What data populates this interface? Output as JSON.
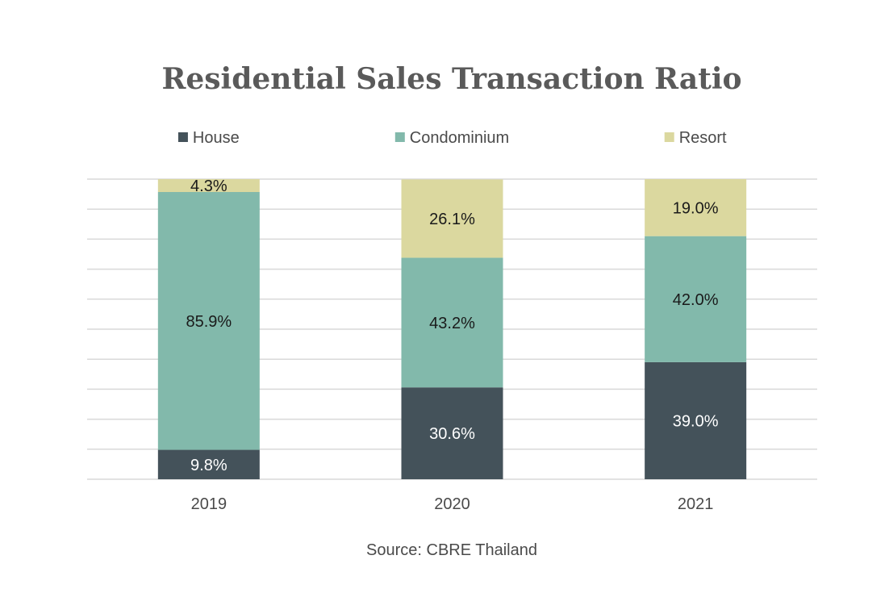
{
  "title": "Residential Sales Transaction Ratio",
  "source": "Source: CBRE Thailand",
  "chart_data": {
    "type": "bar",
    "stacked": true,
    "percent": true,
    "title": "Residential Sales Transaction Ratio",
    "categories": [
      "2019",
      "2020",
      "2021"
    ],
    "series": [
      {
        "name": "House",
        "color": "#44525a",
        "label_color": "#ffffff",
        "values": [
          9.8,
          30.6,
          39.0
        ],
        "labels": [
          "9.8%",
          "30.6%",
          "39.0%"
        ]
      },
      {
        "name": "Condominium",
        "color": "#82b9ab",
        "label_color": "#1a1a1a",
        "values": [
          85.9,
          43.2,
          42.0
        ],
        "labels": [
          "85.9%",
          "43.2%",
          "42.0%"
        ]
      },
      {
        "name": "Resort",
        "color": "#dbd89f",
        "label_color": "#1a1a1a",
        "values": [
          4.3,
          26.1,
          19.0
        ],
        "labels": [
          "4.3%",
          "26.1%",
          "19.0%"
        ]
      }
    ],
    "ylim": [
      0,
      100
    ],
    "grid": true,
    "legend_position": "top",
    "source": "Source: CBRE Thailand"
  }
}
